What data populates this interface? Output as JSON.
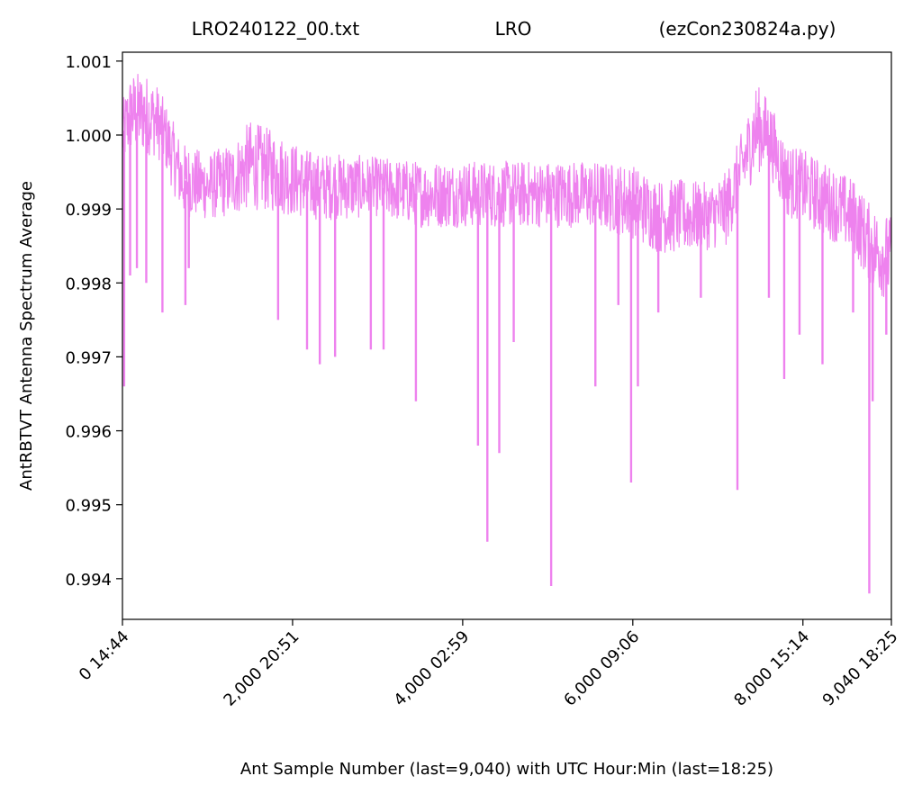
{
  "chart_data": {
    "type": "line",
    "title_left": "LRO240122_00.txt",
    "title_center": "LRO",
    "title_right": "(ezCon230824a.py)",
    "xlabel": "Ant Sample Number (last=9,040) with UTC Hour:Min (last=18:25)",
    "ylabel": "AntRBTVT Antenna Spectrum Average",
    "xlim": [
      0,
      9040
    ],
    "ylim": [
      0.99345,
      1.00112
    ],
    "grid": false,
    "line_color": "#ee82ee",
    "x_ticks": [
      {
        "value": 0,
        "label": "0  14:44"
      },
      {
        "value": 2000,
        "label": "2,000  20:51"
      },
      {
        "value": 4000,
        "label": "4,000  02:59"
      },
      {
        "value": 6000,
        "label": "6,000  09:06"
      },
      {
        "value": 8000,
        "label": "8,000  15:14"
      },
      {
        "value": 9040,
        "label": "9,040  18:25"
      }
    ],
    "y_ticks": [
      {
        "value": 1.001,
        "label": "1.001"
      },
      {
        "value": 1.0,
        "label": "1.000"
      },
      {
        "value": 0.999,
        "label": "0.999"
      },
      {
        "value": 0.998,
        "label": "0.998"
      },
      {
        "value": 0.997,
        "label": "0.997"
      },
      {
        "value": 0.996,
        "label": "0.996"
      },
      {
        "value": 0.995,
        "label": "0.995"
      },
      {
        "value": 0.994,
        "label": "0.994"
      }
    ],
    "series": [
      {
        "x": [
          0,
          100,
          250,
          400,
          500,
          700,
          1000,
          1300,
          1500,
          1800,
          2000,
          2300,
          2600,
          3000,
          3500,
          4000,
          4500,
          5000,
          5500,
          6000,
          6300,
          6600,
          6900,
          7100,
          7300,
          7450,
          7600,
          7800,
          8000,
          8300,
          8600,
          8800,
          9040
        ],
        "mean": [
          1.0,
          1.0003,
          1.0003,
          1.0002,
          1.0,
          0.9994,
          0.9993,
          0.9994,
          0.9996,
          0.9995,
          0.9994,
          0.9993,
          0.9993,
          0.9993,
          0.9992,
          0.9992,
          0.9992,
          0.9992,
          0.9992,
          0.9991,
          0.9989,
          0.9989,
          0.9989,
          0.999,
          0.9996,
          1.0001,
          1.0,
          0.9994,
          0.9993,
          0.9991,
          0.9989,
          0.9985,
          0.9983
        ],
        "band": [
          0.00045,
          0.00055,
          0.00055,
          0.0005,
          0.00045,
          0.0005,
          0.00045,
          0.0005,
          0.0006,
          0.00055,
          0.0005,
          0.00045,
          0.00045,
          0.0004,
          0.00045,
          0.00045,
          0.00045,
          0.00045,
          0.00045,
          0.0005,
          0.0005,
          0.0005,
          0.00045,
          0.0005,
          0.0005,
          0.0006,
          0.0005,
          0.0005,
          0.0005,
          0.0005,
          0.0005,
          0.00055,
          0.0006
        ]
      }
    ],
    "dips": [
      {
        "x": 20,
        "y": 0.9966
      },
      {
        "x": 90,
        "y": 0.9981
      },
      {
        "x": 170,
        "y": 0.9982
      },
      {
        "x": 280,
        "y": 0.998
      },
      {
        "x": 470,
        "y": 0.9976
      },
      {
        "x": 740,
        "y": 0.9977
      },
      {
        "x": 780,
        "y": 0.9982
      },
      {
        "x": 1830,
        "y": 0.9975
      },
      {
        "x": 2170,
        "y": 0.9971
      },
      {
        "x": 2320,
        "y": 0.9969
      },
      {
        "x": 2500,
        "y": 0.997
      },
      {
        "x": 2920,
        "y": 0.9971
      },
      {
        "x": 3070,
        "y": 0.9971
      },
      {
        "x": 3450,
        "y": 0.9964
      },
      {
        "x": 4180,
        "y": 0.9958
      },
      {
        "x": 4290,
        "y": 0.9945
      },
      {
        "x": 4430,
        "y": 0.9957
      },
      {
        "x": 4600,
        "y": 0.9972
      },
      {
        "x": 5040,
        "y": 0.9939
      },
      {
        "x": 5560,
        "y": 0.9966
      },
      {
        "x": 5830,
        "y": 0.9977
      },
      {
        "x": 5980,
        "y": 0.9953
      },
      {
        "x": 6060,
        "y": 0.9966
      },
      {
        "x": 6300,
        "y": 0.9976
      },
      {
        "x": 6800,
        "y": 0.9978
      },
      {
        "x": 7230,
        "y": 0.9952
      },
      {
        "x": 7600,
        "y": 0.9978
      },
      {
        "x": 7780,
        "y": 0.9967
      },
      {
        "x": 7960,
        "y": 0.9973
      },
      {
        "x": 8230,
        "y": 0.9969
      },
      {
        "x": 8590,
        "y": 0.9976
      },
      {
        "x": 8780,
        "y": 0.9938
      },
      {
        "x": 8820,
        "y": 0.9964
      },
      {
        "x": 8980,
        "y": 0.9973
      }
    ]
  }
}
